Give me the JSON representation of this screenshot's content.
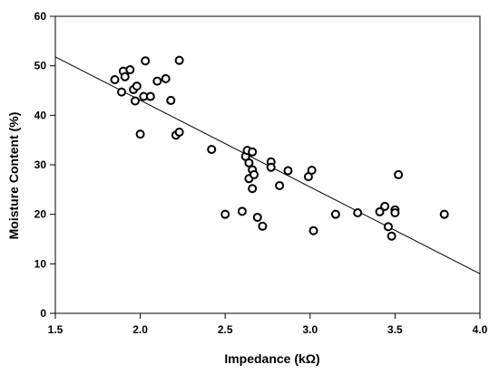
{
  "chart_data": {
    "type": "scatter",
    "title": "",
    "xlabel": "Impedance (kΩ)",
    "ylabel": "Moisture Content (%)",
    "xlim": [
      1.5,
      4.0
    ],
    "ylim": [
      0,
      60
    ],
    "x_ticks": [
      "1.5",
      "2.0",
      "2.5",
      "3.0",
      "3.5",
      "4.0"
    ],
    "y_ticks": [
      "0",
      "10",
      "20",
      "30",
      "40",
      "50",
      "60"
    ],
    "grid": false,
    "marker": "open-circle",
    "series": [
      {
        "points": [
          [
            1.85,
            47.2
          ],
          [
            1.89,
            44.7
          ],
          [
            1.9,
            48.9
          ],
          [
            1.91,
            47.8
          ],
          [
            1.94,
            49.2
          ],
          [
            1.96,
            45.2
          ],
          [
            1.97,
            42.9
          ],
          [
            1.98,
            45.9
          ],
          [
            2.0,
            36.2
          ],
          [
            2.02,
            43.8
          ],
          [
            2.03,
            51.0
          ],
          [
            2.06,
            43.8
          ],
          [
            2.1,
            46.9
          ],
          [
            2.15,
            47.4
          ],
          [
            2.18,
            43.0
          ],
          [
            2.21,
            36.0
          ],
          [
            2.23,
            36.6
          ],
          [
            2.23,
            51.1
          ],
          [
            2.42,
            33.1
          ],
          [
            2.5,
            20.0
          ],
          [
            2.6,
            20.6
          ],
          [
            2.62,
            31.7
          ],
          [
            2.63,
            32.9
          ],
          [
            2.64,
            30.4
          ],
          [
            2.64,
            27.2
          ],
          [
            2.66,
            32.6
          ],
          [
            2.66,
            29.0
          ],
          [
            2.66,
            25.2
          ],
          [
            2.67,
            28.0
          ],
          [
            2.69,
            19.4
          ],
          [
            2.72,
            17.6
          ],
          [
            2.77,
            30.6
          ],
          [
            2.77,
            29.5
          ],
          [
            2.82,
            25.8
          ],
          [
            2.87,
            28.8
          ],
          [
            2.99,
            27.6
          ],
          [
            3.01,
            28.9
          ],
          [
            3.02,
            16.7
          ],
          [
            3.15,
            20.0
          ],
          [
            3.28,
            20.3
          ],
          [
            3.41,
            20.5
          ],
          [
            3.44,
            21.6
          ],
          [
            3.46,
            17.5
          ],
          [
            3.48,
            15.6
          ],
          [
            3.5,
            20.9
          ],
          [
            3.5,
            20.3
          ],
          [
            3.52,
            28.0
          ],
          [
            3.79,
            20.0
          ]
        ]
      }
    ],
    "trendline": {
      "x": [
        1.5,
        4.0
      ],
      "y": [
        51.8,
        8.0
      ]
    }
  }
}
